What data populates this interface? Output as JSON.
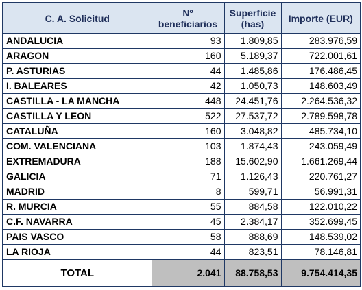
{
  "table": {
    "header": [
      [
        "C. A. Solicitud"
      ],
      [
        "Nº",
        "beneficiarios"
      ],
      [
        "Superficie",
        "(has)"
      ],
      [
        "Importe (EUR)"
      ]
    ],
    "rows": [
      [
        "ANDALUCIA",
        "93",
        "1.809,85",
        "283.976,59"
      ],
      [
        "ARAGON",
        "160",
        "5.189,37",
        "722.001,61"
      ],
      [
        "P. ASTURIAS",
        "44",
        "1.485,86",
        "176.486,45"
      ],
      [
        "I. BALEARES",
        "42",
        "1.050,73",
        "148.603,49"
      ],
      [
        "CASTILLA - LA MANCHA",
        "448",
        "24.451,76",
        "2.264.536,32"
      ],
      [
        "CASTILLA Y LEON",
        "522",
        "27.537,72",
        "2.789.598,78"
      ],
      [
        "CATALUÑA",
        "160",
        "3.048,82",
        "485.734,10"
      ],
      [
        "COM. VALENCIANA",
        "103",
        "1.874,43",
        "243.059,49"
      ],
      [
        "EXTREMADURA",
        "188",
        "15.602,90",
        "1.661.269,44"
      ],
      [
        "GALICIA",
        "71",
        "1.126,43",
        "220.761,27"
      ],
      [
        "MADRID",
        "8",
        "599,71",
        "56.991,31"
      ],
      [
        "R. MURCIA",
        "55",
        "884,58",
        "122.010,22"
      ],
      [
        "C.F. NAVARRA",
        "45",
        "2.384,17",
        "352.699,45"
      ],
      [
        "PAIS VASCO",
        "58",
        "888,69",
        "148.539,02"
      ],
      [
        "LA RIOJA",
        "44",
        "823,51",
        "78.146,81"
      ]
    ],
    "total": [
      "TOTAL",
      "2.041",
      "88.758,53",
      "9.754.414,35"
    ]
  }
}
